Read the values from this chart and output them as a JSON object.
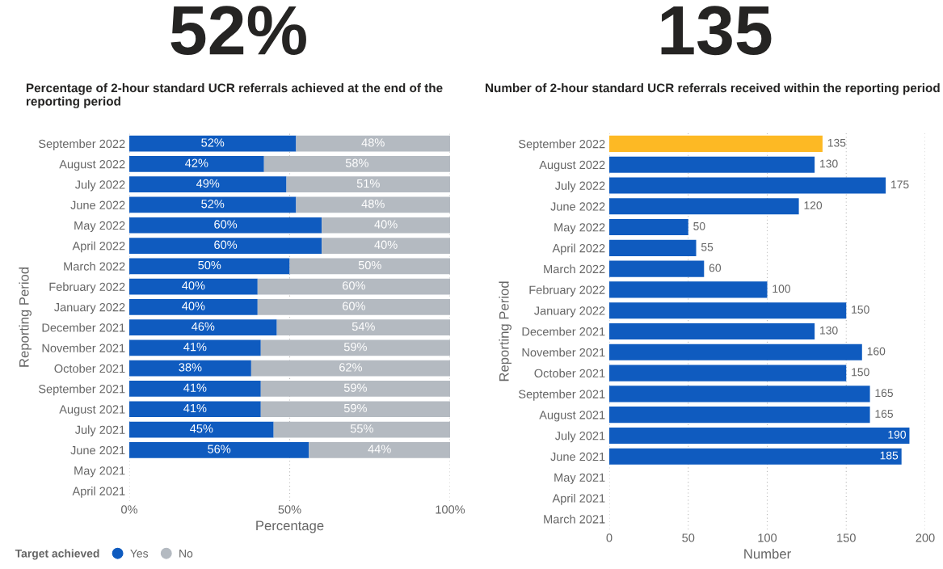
{
  "chart_data": [
    {
      "type": "other",
      "annotations": [
        "52%"
      ]
    },
    {
      "type": "other",
      "annotations": [
        "135"
      ]
    },
    {
      "type": "bar",
      "orientation": "horizontal",
      "stacked": true,
      "title": "Percentage of 2-hour standard UCR referrals achieved at the end of the reporting period",
      "xlabel": "Percentage",
      "ylabel": "Reporting Period",
      "legend_title": "Target achieved",
      "legend": "bottom left",
      "grid": "x",
      "categories": [
        "September 2022",
        "August 2022",
        "July 2022",
        "June 2022",
        "May 2022",
        "April 2022",
        "March 2022",
        "February 2022",
        "January 2022",
        "December 2021",
        "November 2021",
        "October 2021",
        "September 2021",
        "August 2021",
        "July 2021",
        "June 2021",
        "May 2021",
        "April 2021"
      ],
      "xlim": [
        0,
        100
      ],
      "xticks": [
        {
          "value": 0,
          "label": "0%"
        },
        {
          "value": 50,
          "label": "50%"
        },
        {
          "value": 100,
          "label": "100%"
        }
      ],
      "series": [
        {
          "name": "Yes",
          "color": "#0f5bbf",
          "values": [
            52,
            42,
            49,
            52,
            60,
            60,
            50,
            40,
            40,
            46,
            41,
            38,
            41,
            41,
            45,
            56,
            null,
            null
          ],
          "value_labels": [
            "52%",
            "42%",
            "49%",
            "52%",
            "60%",
            "60%",
            "50%",
            "40%",
            "40%",
            "46%",
            "41%",
            "38%",
            "41%",
            "41%",
            "45%",
            "56%",
            null,
            null
          ]
        },
        {
          "name": "No",
          "color": "#b4bac1",
          "values": [
            48,
            58,
            51,
            48,
            40,
            40,
            50,
            60,
            60,
            54,
            59,
            62,
            59,
            59,
            55,
            44,
            null,
            null
          ],
          "value_labels": [
            "48%",
            "58%",
            "51%",
            "48%",
            "40%",
            "40%",
            "50%",
            "60%",
            "60%",
            "54%",
            "59%",
            "62%",
            "59%",
            "59%",
            "55%",
            "44%",
            null,
            null
          ]
        }
      ]
    },
    {
      "type": "bar",
      "orientation": "horizontal",
      "title": "Number of 2-hour standard UCR referrals received within the reporting period",
      "xlabel": "Number",
      "ylabel": "Reporting Period",
      "grid": "x",
      "data_labels": true,
      "categories": [
        "September 2022",
        "August 2022",
        "July 2022",
        "June 2022",
        "May 2022",
        "April 2022",
        "March 2022",
        "February 2022",
        "January 2022",
        "December 2021",
        "November 2021",
        "October 2021",
        "September 2021",
        "August 2021",
        "July 2021",
        "June 2021",
        "May 2021",
        "April 2021",
        "March 2021"
      ],
      "xlim": [
        0,
        200
      ],
      "xticks": [
        0,
        50,
        100,
        150,
        200
      ],
      "values": [
        135,
        130,
        175,
        120,
        50,
        55,
        60,
        100,
        150,
        130,
        160,
        150,
        165,
        165,
        190,
        185,
        null,
        null,
        null
      ],
      "colors": [
        "#fdb924",
        "#0f5bbf",
        "#0f5bbf",
        "#0f5bbf",
        "#0f5bbf",
        "#0f5bbf",
        "#0f5bbf",
        "#0f5bbf",
        "#0f5bbf",
        "#0f5bbf",
        "#0f5bbf",
        "#0f5bbf",
        "#0f5bbf",
        "#0f5bbf",
        "#0f5bbf",
        "#0f5bbf",
        "#0f5bbf",
        "#0f5bbf",
        "#0f5bbf"
      ]
    }
  ]
}
